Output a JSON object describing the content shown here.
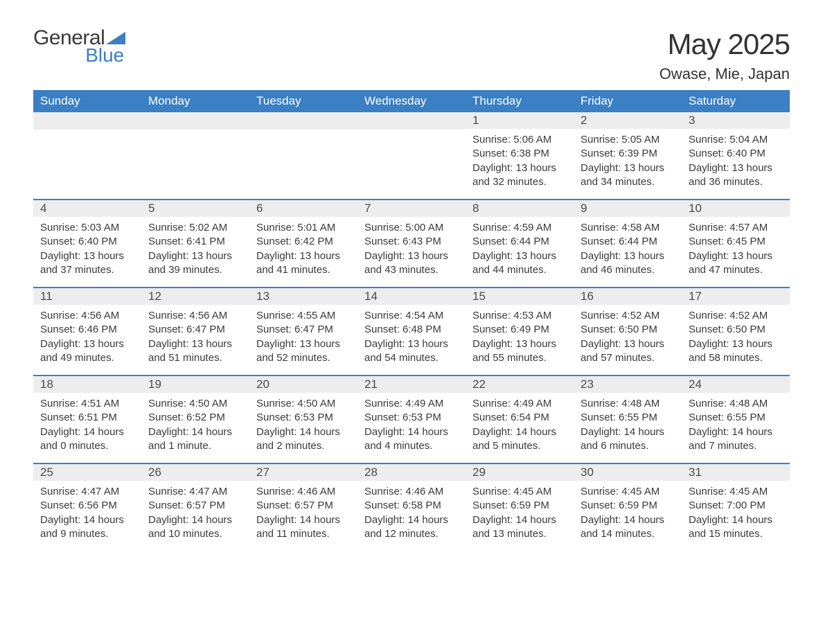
{
  "logo": {
    "line1": "General",
    "line2": "Blue",
    "tri_color": "#3b7fc4"
  },
  "title": "May 2025",
  "location": "Owase, Mie, Japan",
  "colors": {
    "header_bg": "#3b7fc4",
    "header_text": "#ffffff",
    "daynum_bg": "#ededed",
    "daynum_text": "#4a4a4a",
    "body_text": "#3a3a3a",
    "rule": "#3b7fc4",
    "page_bg": "#ffffff"
  },
  "typography": {
    "title_size_pt": 32,
    "location_size_pt": 17,
    "weekday_size_pt": 13,
    "daynum_size_pt": 13,
    "body_size_pt": 11
  },
  "weekdays": [
    "Sunday",
    "Monday",
    "Tuesday",
    "Wednesday",
    "Thursday",
    "Friday",
    "Saturday"
  ],
  "weeks": [
    [
      null,
      null,
      null,
      null,
      {
        "num": "1",
        "sunrise": "5:06 AM",
        "sunset": "6:38 PM",
        "daylight": "13 hours and 32 minutes."
      },
      {
        "num": "2",
        "sunrise": "5:05 AM",
        "sunset": "6:39 PM",
        "daylight": "13 hours and 34 minutes."
      },
      {
        "num": "3",
        "sunrise": "5:04 AM",
        "sunset": "6:40 PM",
        "daylight": "13 hours and 36 minutes."
      }
    ],
    [
      {
        "num": "4",
        "sunrise": "5:03 AM",
        "sunset": "6:40 PM",
        "daylight": "13 hours and 37 minutes."
      },
      {
        "num": "5",
        "sunrise": "5:02 AM",
        "sunset": "6:41 PM",
        "daylight": "13 hours and 39 minutes."
      },
      {
        "num": "6",
        "sunrise": "5:01 AM",
        "sunset": "6:42 PM",
        "daylight": "13 hours and 41 minutes."
      },
      {
        "num": "7",
        "sunrise": "5:00 AM",
        "sunset": "6:43 PM",
        "daylight": "13 hours and 43 minutes."
      },
      {
        "num": "8",
        "sunrise": "4:59 AM",
        "sunset": "6:44 PM",
        "daylight": "13 hours and 44 minutes."
      },
      {
        "num": "9",
        "sunrise": "4:58 AM",
        "sunset": "6:44 PM",
        "daylight": "13 hours and 46 minutes."
      },
      {
        "num": "10",
        "sunrise": "4:57 AM",
        "sunset": "6:45 PM",
        "daylight": "13 hours and 47 minutes."
      }
    ],
    [
      {
        "num": "11",
        "sunrise": "4:56 AM",
        "sunset": "6:46 PM",
        "daylight": "13 hours and 49 minutes."
      },
      {
        "num": "12",
        "sunrise": "4:56 AM",
        "sunset": "6:47 PM",
        "daylight": "13 hours and 51 minutes."
      },
      {
        "num": "13",
        "sunrise": "4:55 AM",
        "sunset": "6:47 PM",
        "daylight": "13 hours and 52 minutes."
      },
      {
        "num": "14",
        "sunrise": "4:54 AM",
        "sunset": "6:48 PM",
        "daylight": "13 hours and 54 minutes."
      },
      {
        "num": "15",
        "sunrise": "4:53 AM",
        "sunset": "6:49 PM",
        "daylight": "13 hours and 55 minutes."
      },
      {
        "num": "16",
        "sunrise": "4:52 AM",
        "sunset": "6:50 PM",
        "daylight": "13 hours and 57 minutes."
      },
      {
        "num": "17",
        "sunrise": "4:52 AM",
        "sunset": "6:50 PM",
        "daylight": "13 hours and 58 minutes."
      }
    ],
    [
      {
        "num": "18",
        "sunrise": "4:51 AM",
        "sunset": "6:51 PM",
        "daylight": "14 hours and 0 minutes."
      },
      {
        "num": "19",
        "sunrise": "4:50 AM",
        "sunset": "6:52 PM",
        "daylight": "14 hours and 1 minute."
      },
      {
        "num": "20",
        "sunrise": "4:50 AM",
        "sunset": "6:53 PM",
        "daylight": "14 hours and 2 minutes."
      },
      {
        "num": "21",
        "sunrise": "4:49 AM",
        "sunset": "6:53 PM",
        "daylight": "14 hours and 4 minutes."
      },
      {
        "num": "22",
        "sunrise": "4:49 AM",
        "sunset": "6:54 PM",
        "daylight": "14 hours and 5 minutes."
      },
      {
        "num": "23",
        "sunrise": "4:48 AM",
        "sunset": "6:55 PM",
        "daylight": "14 hours and 6 minutes."
      },
      {
        "num": "24",
        "sunrise": "4:48 AM",
        "sunset": "6:55 PM",
        "daylight": "14 hours and 7 minutes."
      }
    ],
    [
      {
        "num": "25",
        "sunrise": "4:47 AM",
        "sunset": "6:56 PM",
        "daylight": "14 hours and 9 minutes."
      },
      {
        "num": "26",
        "sunrise": "4:47 AM",
        "sunset": "6:57 PM",
        "daylight": "14 hours and 10 minutes."
      },
      {
        "num": "27",
        "sunrise": "4:46 AM",
        "sunset": "6:57 PM",
        "daylight": "14 hours and 11 minutes."
      },
      {
        "num": "28",
        "sunrise": "4:46 AM",
        "sunset": "6:58 PM",
        "daylight": "14 hours and 12 minutes."
      },
      {
        "num": "29",
        "sunrise": "4:45 AM",
        "sunset": "6:59 PM",
        "daylight": "14 hours and 13 minutes."
      },
      {
        "num": "30",
        "sunrise": "4:45 AM",
        "sunset": "6:59 PM",
        "daylight": "14 hours and 14 minutes."
      },
      {
        "num": "31",
        "sunrise": "4:45 AM",
        "sunset": "7:00 PM",
        "daylight": "14 hours and 15 minutes."
      }
    ]
  ],
  "labels": {
    "sunrise_prefix": "Sunrise: ",
    "sunset_prefix": "Sunset: ",
    "daylight_prefix": "Daylight: "
  }
}
